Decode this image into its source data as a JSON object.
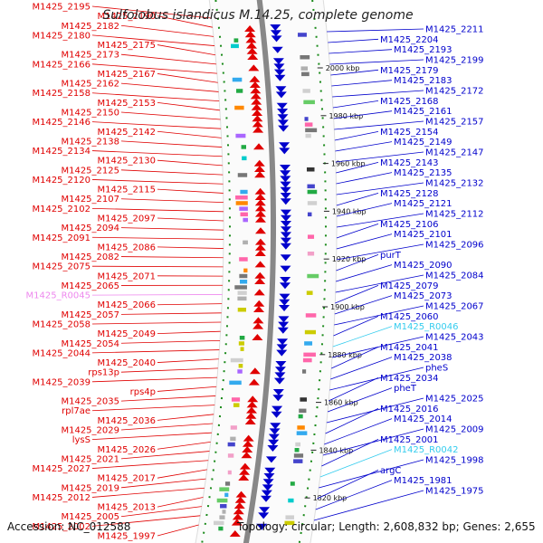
{
  "title": "Sulfolobus islandicus M.14.25, complete genome",
  "footer": {
    "accession": "Accession: NC_012588",
    "summary": "Topology: circular; Length: 2,608,832 bp; Genes: 2,655"
  },
  "colors": {
    "forward": "#e00000",
    "reverse": "#0000cc",
    "rrna_fwd": "#ee88ee",
    "rrna_rev": "#33ccee",
    "backbone": "#888888",
    "tick": "#1a8a1a"
  },
  "ticks": [
    "2000 kbp",
    "1980 kbp",
    "1960 kbp",
    "1940 kbp",
    "1920 kbp",
    "1900 kbp",
    "1880 kbp",
    "1860 kbp",
    "1840 kbp",
    "1820 kbp"
  ],
  "left_labels": [
    {
      "text": "M1425_2195",
      "c": "f"
    },
    {
      "text": "M1425_2190",
      "c": "f"
    },
    {
      "text": "M1425_2182",
      "c": "f"
    },
    {
      "text": "M1425_2180",
      "c": "f"
    },
    {
      "text": "M1425_2175",
      "c": "f"
    },
    {
      "text": "M1425_2173",
      "c": "f"
    },
    {
      "text": "M1425_2166",
      "c": "f"
    },
    {
      "text": "M1425_2167",
      "c": "f"
    },
    {
      "text": "M1425_2162",
      "c": "f"
    },
    {
      "text": "M1425_2158",
      "c": "f"
    },
    {
      "text": "M1425_2153",
      "c": "f"
    },
    {
      "text": "M1425_2150",
      "c": "f"
    },
    {
      "text": "M1425_2146",
      "c": "f"
    },
    {
      "text": "M1425_2142",
      "c": "f"
    },
    {
      "text": "M1425_2138",
      "c": "f"
    },
    {
      "text": "M1425_2134",
      "c": "f"
    },
    {
      "text": "M1425_2130",
      "c": "f"
    },
    {
      "text": "M1425_2125",
      "c": "f"
    },
    {
      "text": "M1425_2120",
      "c": "f"
    },
    {
      "text": "M1425_2115",
      "c": "f"
    },
    {
      "text": "M1425_2107",
      "c": "f"
    },
    {
      "text": "M1425_2102",
      "c": "f"
    },
    {
      "text": "M1425_2097",
      "c": "f"
    },
    {
      "text": "M1425_2094",
      "c": "f"
    },
    {
      "text": "M1425_2091",
      "c": "f"
    },
    {
      "text": "M1425_2086",
      "c": "f"
    },
    {
      "text": "M1425_2082",
      "c": "f"
    },
    {
      "text": "M1425_2075",
      "c": "f"
    },
    {
      "text": "M1425_2071",
      "c": "f"
    },
    {
      "text": "M1425_2065",
      "c": "f"
    },
    {
      "text": "M1425_R0045",
      "c": "p"
    },
    {
      "text": "M1425_2066",
      "c": "f"
    },
    {
      "text": "M1425_2057",
      "c": "f"
    },
    {
      "text": "M1425_2058",
      "c": "f"
    },
    {
      "text": "M1425_2049",
      "c": "f"
    },
    {
      "text": "M1425_2054",
      "c": "f"
    },
    {
      "text": "M1425_2044",
      "c": "f"
    },
    {
      "text": "M1425_2040",
      "c": "f"
    },
    {
      "text": "rps13p",
      "c": "f"
    },
    {
      "text": "M1425_2039",
      "c": "f"
    },
    {
      "text": "rps4p",
      "c": "f"
    },
    {
      "text": "M1425_2035",
      "c": "f"
    },
    {
      "text": "rpl7ae",
      "c": "f"
    },
    {
      "text": "M1425_2036",
      "c": "f"
    },
    {
      "text": "M1425_2029",
      "c": "f"
    },
    {
      "text": "lysS",
      "c": "f"
    },
    {
      "text": "M1425_2026",
      "c": "f"
    },
    {
      "text": "M1425_2021",
      "c": "f"
    },
    {
      "text": "M1425_2027",
      "c": "f"
    },
    {
      "text": "M1425_2017",
      "c": "f"
    },
    {
      "text": "M1425_2019",
      "c": "f"
    },
    {
      "text": "M1425_2012",
      "c": "f"
    },
    {
      "text": "M1425_2013",
      "c": "f"
    },
    {
      "text": "M1425_2005",
      "c": "f"
    },
    {
      "text": "M1425_2002",
      "c": "f"
    },
    {
      "text": "M1425_1997",
      "c": "f"
    }
  ],
  "right_labels": [
    {
      "text": "M1425_2211",
      "c": "r"
    },
    {
      "text": "M1425_2204",
      "c": "r"
    },
    {
      "text": "M1425_2193",
      "c": "r"
    },
    {
      "text": "M1425_2199",
      "c": "r"
    },
    {
      "text": "M1425_2179",
      "c": "r"
    },
    {
      "text": "M1425_2183",
      "c": "r"
    },
    {
      "text": "M1425_2172",
      "c": "r"
    },
    {
      "text": "M1425_2168",
      "c": "r"
    },
    {
      "text": "M1425_2161",
      "c": "r"
    },
    {
      "text": "M1425_2157",
      "c": "r"
    },
    {
      "text": "M1425_2154",
      "c": "r"
    },
    {
      "text": "M1425_2149",
      "c": "r"
    },
    {
      "text": "M1425_2147",
      "c": "r"
    },
    {
      "text": "M1425_2143",
      "c": "r"
    },
    {
      "text": "M1425_2135",
      "c": "r"
    },
    {
      "text": "M1425_2132",
      "c": "r"
    },
    {
      "text": "M1425_2128",
      "c": "r"
    },
    {
      "text": "M1425_2121",
      "c": "r"
    },
    {
      "text": "M1425_2112",
      "c": "r"
    },
    {
      "text": "M1425_2106",
      "c": "r"
    },
    {
      "text": "M1425_2101",
      "c": "r"
    },
    {
      "text": "M1425_2096",
      "c": "r"
    },
    {
      "text": "purT",
      "c": "r"
    },
    {
      "text": "M1425_2090",
      "c": "r"
    },
    {
      "text": "M1425_2084",
      "c": "r"
    },
    {
      "text": "M1425_2079",
      "c": "r"
    },
    {
      "text": "M1425_2073",
      "c": "r"
    },
    {
      "text": "M1425_2067",
      "c": "r"
    },
    {
      "text": "M1425_2060",
      "c": "r"
    },
    {
      "text": "M1425_R0046",
      "c": "c"
    },
    {
      "text": "M1425_2043",
      "c": "r"
    },
    {
      "text": "M1425_2041",
      "c": "r"
    },
    {
      "text": "M1425_2038",
      "c": "r"
    },
    {
      "text": "pheS",
      "c": "r"
    },
    {
      "text": "M1425_2034",
      "c": "r"
    },
    {
      "text": "pheT",
      "c": "r"
    },
    {
      "text": "M1425_2025",
      "c": "r"
    },
    {
      "text": "M1425_2016",
      "c": "r"
    },
    {
      "text": "M1425_2014",
      "c": "r"
    },
    {
      "text": "M1425_2009",
      "c": "r"
    },
    {
      "text": "M1425_2001",
      "c": "r"
    },
    {
      "text": "M1425_R0042",
      "c": "c"
    },
    {
      "text": "M1425_1998",
      "c": "r"
    },
    {
      "text": "argC",
      "c": "r"
    },
    {
      "text": "M1425_1981",
      "c": "r"
    },
    {
      "text": "M1425_1975",
      "c": "r"
    }
  ]
}
